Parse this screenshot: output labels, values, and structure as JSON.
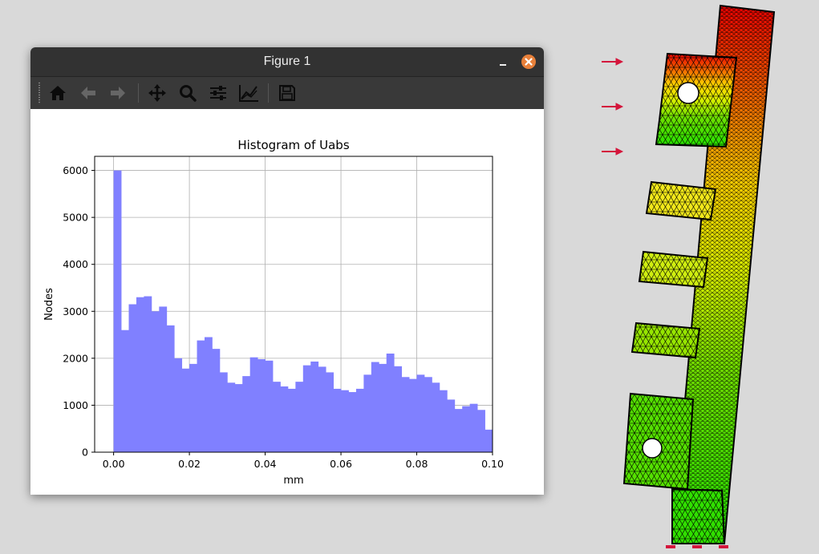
{
  "window": {
    "title": "Figure 1"
  },
  "toolbar": {
    "buttons": [
      {
        "name": "home",
        "icon": "home-icon"
      },
      {
        "name": "back",
        "icon": "arrow-left-icon"
      },
      {
        "name": "forward",
        "icon": "arrow-right-icon"
      },
      {
        "name": "pan",
        "icon": "move-icon"
      },
      {
        "name": "zoom",
        "icon": "magnifier-icon"
      },
      {
        "name": "configure-subplots",
        "icon": "sliders-icon"
      },
      {
        "name": "edit-axis",
        "icon": "line-chart-icon"
      },
      {
        "name": "save",
        "icon": "floppy-disk-icon"
      }
    ]
  },
  "colors": {
    "bar_fill": "#8080ff",
    "window_titlebar": "#323232",
    "toolbar": "#393939",
    "close_button": "#e8803a",
    "load_arrows": "#d4163c"
  },
  "chart_data": {
    "type": "bar",
    "title": "Histogram of Uabs",
    "xlabel": "mm",
    "ylabel": "Nodes",
    "xlim": [
      -0.005,
      0.1
    ],
    "ylim": [
      0,
      6300
    ],
    "xticks": [
      0.0,
      0.02,
      0.04,
      0.06,
      0.08,
      0.1
    ],
    "xtick_labels": [
      "0.00",
      "0.02",
      "0.04",
      "0.06",
      "0.08",
      "0.10"
    ],
    "yticks": [
      0,
      1000,
      2000,
      3000,
      4000,
      5000,
      6000
    ],
    "ytick_labels": [
      "0",
      "1000",
      "2000",
      "3000",
      "4000",
      "5000",
      "6000"
    ],
    "grid": true,
    "bin_start": 0.0,
    "bin_width": 0.002,
    "values": [
      6000,
      2600,
      3150,
      3300,
      3320,
      3000,
      3100,
      2700,
      2000,
      1780,
      1880,
      2380,
      2450,
      2200,
      1700,
      1480,
      1450,
      1620,
      2020,
      1980,
      1950,
      1500,
      1400,
      1350,
      1500,
      1850,
      1930,
      1820,
      1700,
      1350,
      1320,
      1280,
      1350,
      1650,
      1920,
      1880,
      2100,
      1830,
      1600,
      1560,
      1650,
      1600,
      1480,
      1320,
      1120,
      920,
      980,
      1030,
      900,
      480
    ]
  }
}
